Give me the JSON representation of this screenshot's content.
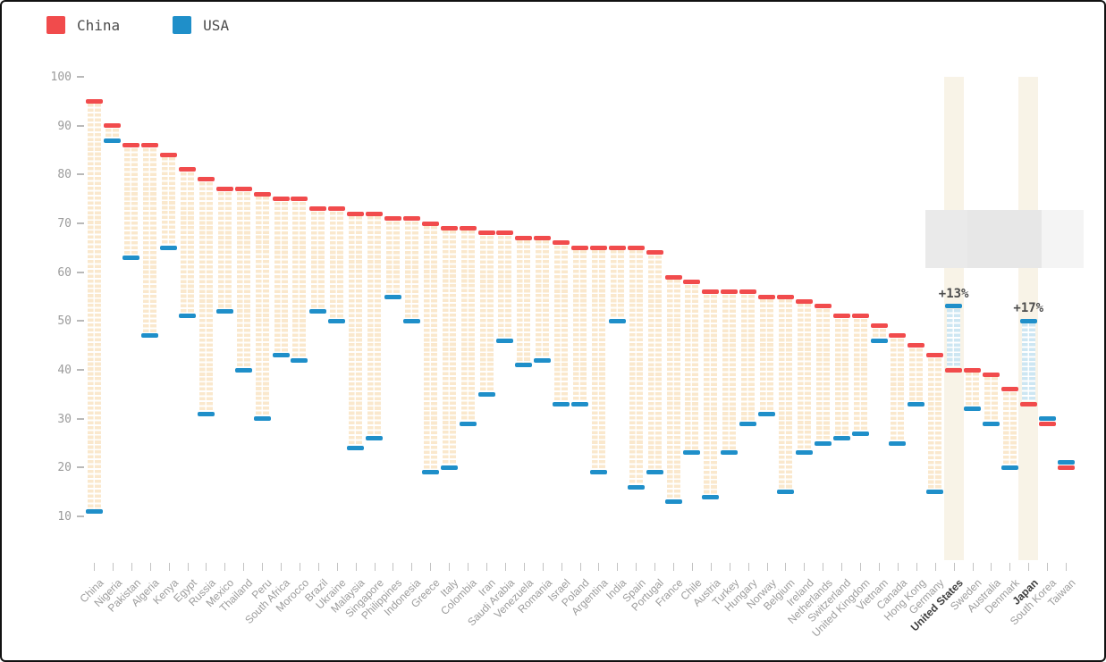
{
  "legend": {
    "position": "top-left",
    "items": [
      {
        "label": "China",
        "color": "#f14b4c"
      },
      {
        "label": "USA",
        "color": "#1f8fc9"
      }
    ]
  },
  "colors": {
    "china_mark": "#f14b4c",
    "usa_mark": "#1f8fc9",
    "band_orange_stripe": "#fae8cd",
    "band_blue_stripe": "#cde6f2",
    "highlight_column": "#f8f3e7",
    "axis_text": "#9b9b9b",
    "country_label": "#9c9c9c",
    "country_label_bold": "#3e3e3e",
    "annotation_text": "#4d4d4d"
  },
  "chart_data": {
    "type": "dumbbell",
    "title": "",
    "xlabel": "",
    "ylabel": "",
    "ylim": [
      10,
      100
    ],
    "y_ticks": [
      100,
      90,
      80,
      70,
      60,
      50,
      40,
      30,
      20,
      10
    ],
    "grid": "off",
    "legend_position": "top-left",
    "series": [
      {
        "name": "China",
        "color": "#f14b4c"
      },
      {
        "name": "USA",
        "color": "#1f8fc9"
      }
    ],
    "points": [
      {
        "name": "China",
        "china": 95,
        "usa": 11
      },
      {
        "name": "Nigeria",
        "china": 90,
        "usa": 87
      },
      {
        "name": "Pakistan",
        "china": 86,
        "usa": 63
      },
      {
        "name": "Algeria",
        "china": 86,
        "usa": 47
      },
      {
        "name": "Kenya",
        "china": 84,
        "usa": 65
      },
      {
        "name": "Egypt",
        "china": 81,
        "usa": 51
      },
      {
        "name": "Russia",
        "china": 79,
        "usa": 31
      },
      {
        "name": "Mexico",
        "china": 77,
        "usa": 52
      },
      {
        "name": "Thailand",
        "china": 77,
        "usa": 40
      },
      {
        "name": "Peru",
        "china": 76,
        "usa": 30
      },
      {
        "name": "South Africa",
        "china": 75,
        "usa": 43
      },
      {
        "name": "Morocco",
        "china": 75,
        "usa": 42
      },
      {
        "name": "Brazil",
        "china": 73,
        "usa": 52
      },
      {
        "name": "Ukraine",
        "china": 73,
        "usa": 50
      },
      {
        "name": "Malaysia",
        "china": 72,
        "usa": 24
      },
      {
        "name": "Singapore",
        "china": 72,
        "usa": 26
      },
      {
        "name": "Philippines",
        "china": 71,
        "usa": 55
      },
      {
        "name": "Indonesia",
        "china": 71,
        "usa": 50
      },
      {
        "name": "Greece",
        "china": 70,
        "usa": 19
      },
      {
        "name": "Italy",
        "china": 69,
        "usa": 20
      },
      {
        "name": "Colombia",
        "china": 69,
        "usa": 29
      },
      {
        "name": "Iran",
        "china": 68,
        "usa": 35
      },
      {
        "name": "Saudi Arabia",
        "china": 68,
        "usa": 46
      },
      {
        "name": "Venezuela",
        "china": 67,
        "usa": 41
      },
      {
        "name": "Romania",
        "china": 67,
        "usa": 42
      },
      {
        "name": "Israel",
        "china": 66,
        "usa": 33
      },
      {
        "name": "Poland",
        "china": 65,
        "usa": 33
      },
      {
        "name": "Argentina",
        "china": 65,
        "usa": 19
      },
      {
        "name": "India",
        "china": 65,
        "usa": 50
      },
      {
        "name": "Spain",
        "china": 65,
        "usa": 16
      },
      {
        "name": "Portugal",
        "china": 64,
        "usa": 19
      },
      {
        "name": "France",
        "china": 59,
        "usa": 13
      },
      {
        "name": "Chile",
        "china": 58,
        "usa": 23
      },
      {
        "name": "Austria",
        "china": 56,
        "usa": 14
      },
      {
        "name": "Turkey",
        "china": 56,
        "usa": 23
      },
      {
        "name": "Hungary",
        "china": 56,
        "usa": 29
      },
      {
        "name": "Norway",
        "china": 55,
        "usa": 31
      },
      {
        "name": "Belgium",
        "china": 55,
        "usa": 15
      },
      {
        "name": "Ireland",
        "china": 54,
        "usa": 23
      },
      {
        "name": "Netherlands",
        "china": 53,
        "usa": 25
      },
      {
        "name": "Switzerland",
        "china": 51,
        "usa": 26
      },
      {
        "name": "United Kingdom",
        "china": 51,
        "usa": 27
      },
      {
        "name": "Vietnam",
        "china": 49,
        "usa": 46
      },
      {
        "name": "Canada",
        "china": 47,
        "usa": 25
      },
      {
        "name": "Hong Kong",
        "china": 45,
        "usa": 33
      },
      {
        "name": "Germany",
        "china": 43,
        "usa": 15
      },
      {
        "name": "United States",
        "china": 40,
        "usa": 53,
        "bold": true,
        "highlight": true,
        "annotation": "+13%"
      },
      {
        "name": "Sweden",
        "china": 40,
        "usa": 32
      },
      {
        "name": "Australia",
        "china": 39,
        "usa": 29
      },
      {
        "name": "Denmark",
        "china": 36,
        "usa": 20
      },
      {
        "name": "Japan",
        "china": 33,
        "usa": 50,
        "bold": true,
        "highlight": true,
        "annotation": "+17%"
      },
      {
        "name": "South Korea",
        "china": 29,
        "usa": 30
      },
      {
        "name": "Taiwan",
        "china": 20,
        "usa": 21
      }
    ]
  },
  "overlay": {
    "blurred_tooltip": {
      "present": true,
      "segment_colors": [
        "#eaeaea",
        "#e7e7e7",
        "#f4f4f4"
      ]
    }
  }
}
